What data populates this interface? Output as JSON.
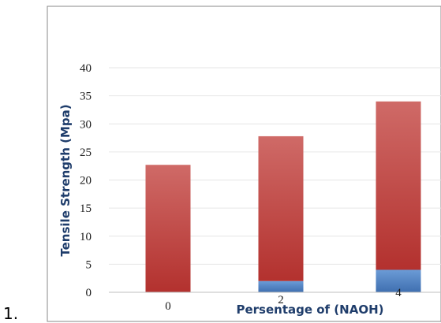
{
  "list_marker": "1.",
  "chart_data": {
    "type": "bar",
    "stacked": true,
    "categories": [
      "0",
      "2",
      "4"
    ],
    "series": [
      {
        "values": [
          0,
          2,
          4
        ],
        "color": "#4f81bd"
      },
      {
        "values": [
          22.7,
          25.8,
          30.0
        ],
        "color": "#c0504d"
      }
    ],
    "totals": [
      22.7,
      27.8,
      34.0
    ],
    "xlabel": "Persentage of (NAOH)",
    "ylabel": "Tensile Strength (Mpa)",
    "ylim": [
      0,
      40
    ],
    "yticks": [
      "0",
      "5",
      "10",
      "15",
      "20",
      "25",
      "30",
      "35",
      "40"
    ],
    "grid": true,
    "legend": "none"
  }
}
